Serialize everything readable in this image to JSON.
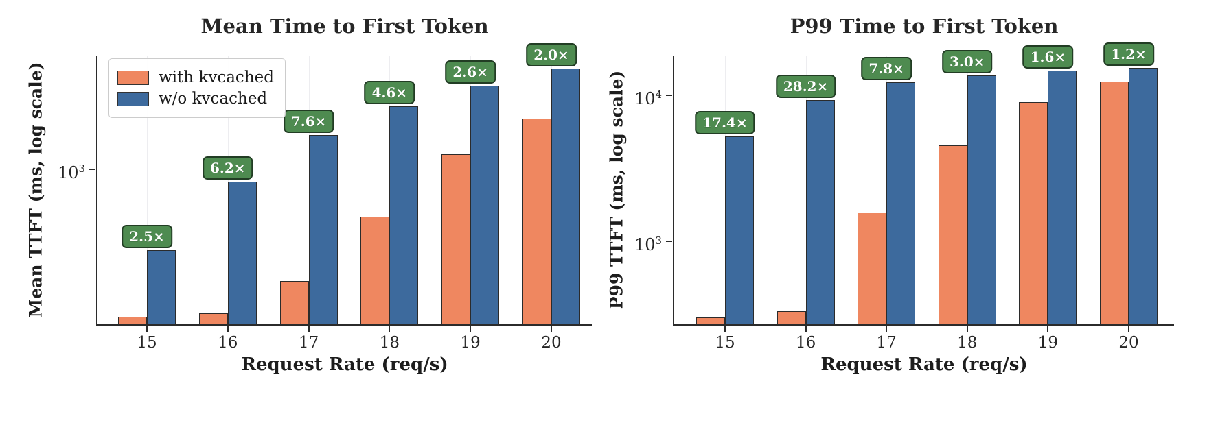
{
  "chart_data": [
    {
      "type": "bar",
      "title": "Mean Time to First Token",
      "xlabel": "Request Rate (req/s)",
      "ylabel": "Mean TTFT (ms, log scale)",
      "yscale": "log",
      "ylim": [
        117,
        4820
      ],
      "yticks": [
        1000
      ],
      "grid": true,
      "categories": [
        "15",
        "16",
        "17",
        "18",
        "19",
        "20"
      ],
      "series": [
        {
          "name": "with kvcached",
          "color": "#ef8760",
          "values": [
            130,
            136,
            212,
            520,
            1230,
            2020
          ]
        },
        {
          "name": "w/o kvcached",
          "color": "#3d6a9d",
          "values": [
            325,
            845,
            1610,
            2390,
            3190,
            4040
          ]
        }
      ],
      "annotations": [
        "2.5×",
        "6.2×",
        "7.6×",
        "4.6×",
        "2.6×",
        "2.0×"
      ],
      "legend": {
        "visible": true,
        "position": "upper left"
      }
    },
    {
      "type": "bar",
      "title": "P99 Time to First Token",
      "xlabel": "Request Rate (req/s)",
      "ylabel": "P99 TTFT (ms, log scale)",
      "yscale": "log",
      "ylim": [
        270,
        18700
      ],
      "yticks": [
        1000,
        10000
      ],
      "grid": true,
      "categories": [
        "15",
        "16",
        "17",
        "18",
        "19",
        "20"
      ],
      "series": [
        {
          "name": "with kvcached",
          "color": "#ef8760",
          "values": [
            300,
            330,
            1570,
            4560,
            9000,
            12400
          ]
        },
        {
          "name": "w/o kvcached",
          "color": "#3d6a9d",
          "values": [
            5220,
            9310,
            12250,
            13680,
            14760,
            15380
          ]
        }
      ],
      "annotations": [
        "17.4×",
        "28.2×",
        "7.8×",
        "3.0×",
        "1.6×",
        "1.2×"
      ],
      "legend": {
        "visible": false,
        "position": null
      }
    }
  ],
  "style": {
    "badge_fill": "#4e8b50",
    "badge_border": "#223d24",
    "badge_text_color": "#ffffff",
    "bar_edge_color": "#2b2b2b",
    "axis_color": "#2b2b2b",
    "grid_color": "#ebebee",
    "text_color": "#262626",
    "background": "#ffffff"
  }
}
